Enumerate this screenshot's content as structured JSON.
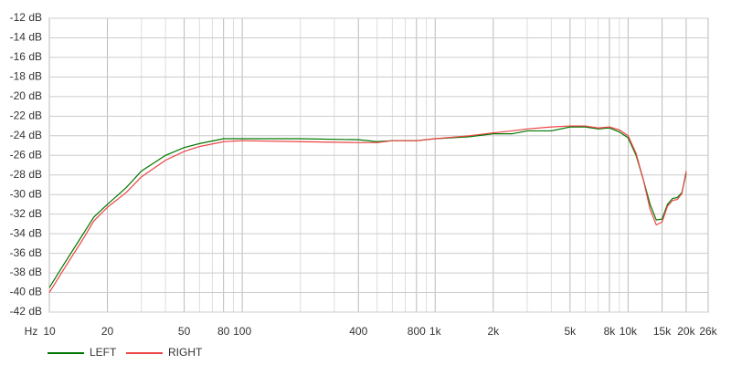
{
  "chart_data": {
    "type": "line",
    "x_label": "Hz",
    "xscale": "log",
    "xlim": [
      10,
      26000
    ],
    "ylim": [
      -42,
      -12
    ],
    "grid": true,
    "legend": "bottom-left",
    "xticks": [
      {
        "value": 10,
        "label": "10"
      },
      {
        "value": 20,
        "label": "20"
      },
      {
        "value": 50,
        "label": "50"
      },
      {
        "value": 80,
        "label": "80"
      },
      {
        "value": 100,
        "label": "100"
      },
      {
        "value": 400,
        "label": "400"
      },
      {
        "value": 800,
        "label": "800"
      },
      {
        "value": 1000,
        "label": "1k"
      },
      {
        "value": 2000,
        "label": "2k"
      },
      {
        "value": 5000,
        "label": "5k"
      },
      {
        "value": 8000,
        "label": "8k"
      },
      {
        "value": 10000,
        "label": "10k"
      },
      {
        "value": 15000,
        "label": "15k"
      },
      {
        "value": 20000,
        "label": "20k"
      },
      {
        "value": 26000,
        "label": "26k"
      }
    ],
    "xminor": [
      30,
      40,
      60,
      70,
      90,
      200,
      300,
      500,
      600,
      700,
      900,
      3000,
      4000,
      6000,
      7000,
      9000
    ],
    "yticks": [
      {
        "value": -12,
        "label": "-12 dB"
      },
      {
        "value": -14,
        "label": "-14 dB"
      },
      {
        "value": -16,
        "label": "-16 dB"
      },
      {
        "value": -18,
        "label": "-18 dB"
      },
      {
        "value": -20,
        "label": "-20 dB"
      },
      {
        "value": -22,
        "label": "-22 dB"
      },
      {
        "value": -24,
        "label": "-24 dB"
      },
      {
        "value": -26,
        "label": "-26 dB"
      },
      {
        "value": -28,
        "label": "-28 dB"
      },
      {
        "value": -30,
        "label": "-30 dB"
      },
      {
        "value": -32,
        "label": "-32 dB"
      },
      {
        "value": -34,
        "label": "-34 dB"
      },
      {
        "value": -36,
        "label": "-36 dB"
      },
      {
        "value": -38,
        "label": "-38 dB"
      },
      {
        "value": -40,
        "label": "-40 dB"
      },
      {
        "value": -42,
        "label": "-42 dB"
      }
    ],
    "x": [
      10,
      12,
      15,
      17,
      20,
      25,
      30,
      40,
      50,
      60,
      80,
      100,
      200,
      400,
      500,
      600,
      800,
      1000,
      1500,
      2000,
      2500,
      3000,
      4000,
      5000,
      6000,
      7000,
      8000,
      9000,
      10000,
      11000,
      12000,
      13000,
      14000,
      15000,
      16000,
      17000,
      18000,
      19000,
      20000
    ],
    "series": [
      {
        "name": "LEFT",
        "color": "#007700",
        "values": [
          -39.5,
          -37,
          -34,
          -32.3,
          -31,
          -29.3,
          -27.6,
          -26,
          -25.2,
          -24.8,
          -24.3,
          -24.3,
          -24.3,
          -24.4,
          -24.6,
          -24.5,
          -24.5,
          -24.3,
          -24.1,
          -23.8,
          -23.8,
          -23.5,
          -23.5,
          -23.1,
          -23.1,
          -23.3,
          -23.2,
          -23.6,
          -24.2,
          -26,
          -28.5,
          -31,
          -32.6,
          -32.5,
          -31,
          -30.4,
          -30.3,
          -29.8,
          -27.8
        ]
      },
      {
        "name": "RIGHT",
        "color": "#ee4444",
        "values": [
          -40,
          -37.5,
          -34.5,
          -32.7,
          -31.3,
          -29.8,
          -28.2,
          -26.5,
          -25.6,
          -25.1,
          -24.6,
          -24.5,
          -24.6,
          -24.7,
          -24.7,
          -24.5,
          -24.5,
          -24.3,
          -24,
          -23.7,
          -23.5,
          -23.3,
          -23.1,
          -23,
          -23,
          -23.2,
          -23.1,
          -23.4,
          -24,
          -25.8,
          -28.5,
          -31.5,
          -33.1,
          -32.8,
          -31.2,
          -30.6,
          -30.5,
          -29.9,
          -27.6
        ]
      }
    ]
  }
}
